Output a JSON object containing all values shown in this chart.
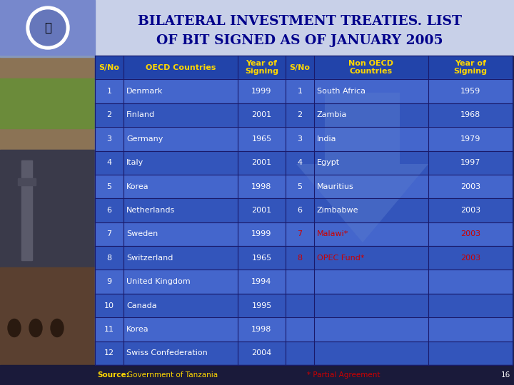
{
  "title_line1": "BILATERAL INVESTMENT TREATIES. LIST",
  "title_line2": "OF BIT SIGNED AS OF JANUARY 2005",
  "title_bg": "#c8d0e8",
  "title_color": "#00008B",
  "header_text_color": "#FFD700",
  "row_text_color": "#FFFFFF",
  "red_text_color": "#CC0000",
  "row_colors": [
    "#3355bb",
    "#4466cc"
  ],
  "header_color": "#2244aa",
  "grid_color": "#1a1a6a",
  "footer_bg": "#1a1a3a",
  "footer_source_color": "#FFD700",
  "footer_note_color": "#CC0000",
  "footer_pagenum_color": "#FFFFFF",
  "left_strip_colors": [
    "#3a5020",
    "#2a3a2a",
    "#1a2030",
    "#3a2a20"
  ],
  "logo_bg": "#7788cc",
  "oecd_headers": [
    "S/No",
    "OECD Countries",
    "Year of\nSigning"
  ],
  "non_oecd_headers": [
    "S/No",
    "Non OECD\nCountries",
    "Year of\nSigning"
  ],
  "oecd_data": [
    [
      "1",
      "Denmark",
      "1999"
    ],
    [
      "2",
      "Finland",
      "2001"
    ],
    [
      "3",
      "Germany",
      "1965"
    ],
    [
      "4",
      "Italy",
      "2001"
    ],
    [
      "5",
      "Korea",
      "1998"
    ],
    [
      "6",
      "Netherlands",
      "2001"
    ],
    [
      "7",
      "Sweden",
      "1999"
    ],
    [
      "8",
      "Switzerland",
      "1965"
    ],
    [
      "9",
      "United Kingdom",
      "1994"
    ],
    [
      "10",
      "Canada",
      "1995"
    ],
    [
      "11",
      "Korea",
      "1998"
    ],
    [
      "12",
      "Swiss Confederation",
      "2004"
    ]
  ],
  "non_oecd_data": [
    [
      "1",
      "South Africa",
      "1959",
      false
    ],
    [
      "2",
      "Zambia",
      "1968",
      false
    ],
    [
      "3",
      "India",
      "1979",
      false
    ],
    [
      "4",
      "Egypt",
      "1997",
      false
    ],
    [
      "5",
      "Mauritius",
      "2003",
      false
    ],
    [
      "6",
      "Zimbabwe",
      "2003",
      false
    ],
    [
      "7",
      "Malawi*",
      "2003",
      true
    ],
    [
      "8",
      "OPEC Fund*",
      "2003",
      true
    ],
    [
      "",
      "",
      "",
      false
    ],
    [
      "",
      "",
      "",
      false
    ],
    [
      "",
      "",
      "",
      false
    ],
    [
      "",
      "",
      "",
      false
    ]
  ],
  "arrow_color": "#5577cc",
  "arrow_alpha": 0.5
}
